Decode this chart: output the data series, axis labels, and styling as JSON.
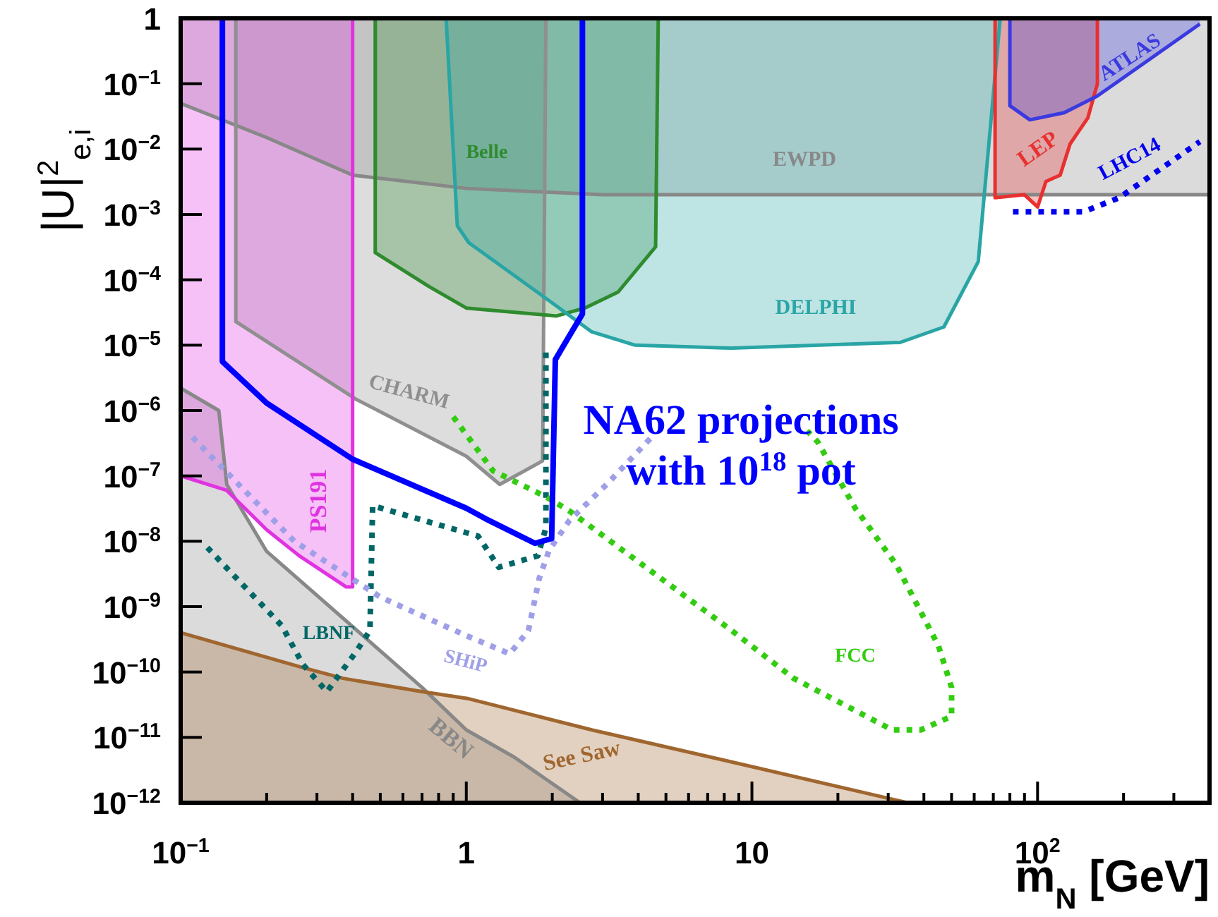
{
  "chart_data": {
    "type": "area",
    "xlabel": "m$_{N}$ [GeV]",
    "ylabel": "|U|$^{2}$$_{e,i}$",
    "log": "xy",
    "grid": false,
    "legend": false,
    "xlim": [
      0.1,
      400
    ],
    "ylim": [
      1e-12,
      1
    ],
    "xticks": [
      {
        "value": 0.1,
        "label": "10$^{−1}$"
      },
      {
        "value": 0.2,
        "label": null
      },
      {
        "value": 0.3,
        "label": null
      },
      {
        "value": 0.4,
        "label": null
      },
      {
        "value": 0.5,
        "label": null
      },
      {
        "value": 0.6,
        "label": null
      },
      {
        "value": 0.7,
        "label": null
      },
      {
        "value": 0.8,
        "label": null
      },
      {
        "value": 0.9,
        "label": null
      },
      1,
      {
        "value": 2,
        "label": null
      },
      {
        "value": 3,
        "label": null
      },
      {
        "value": 4,
        "label": null
      },
      {
        "value": 5,
        "label": null
      },
      {
        "value": 6,
        "label": null
      },
      {
        "value": 7,
        "label": null
      },
      {
        "value": 8,
        "label": null
      },
      {
        "value": 9,
        "label": null
      },
      10,
      {
        "value": 20,
        "label": null
      },
      {
        "value": 30,
        "label": null
      },
      {
        "value": 40,
        "label": null
      },
      {
        "value": 50,
        "label": null
      },
      {
        "value": 60,
        "label": null
      },
      {
        "value": 70,
        "label": null
      },
      {
        "value": 80,
        "label": null
      },
      {
        "value": 90,
        "label": null
      },
      {
        "value": 100,
        "label": "10$^{2}$"
      },
      {
        "value": 200,
        "label": null
      },
      {
        "value": 300,
        "label": null
      }
    ],
    "yticks": [
      {
        "value": 1e-12,
        "label": "10$^{−12}$"
      },
      {
        "value": 1e-11,
        "label": "10$^{−11}$"
      },
      {
        "value": 1e-10,
        "label": "10$^{−10}$"
      },
      {
        "value": 1e-09,
        "label": "10$^{−9}$"
      },
      {
        "value": 1e-08,
        "label": "10$^{−8}$"
      },
      {
        "value": 1e-07,
        "label": "10$^{−7}$"
      },
      {
        "value": 1e-06,
        "label": "10$^{−6}$"
      },
      {
        "value": 1e-05,
        "label": "10$^{−5}$"
      },
      {
        "value": 0.0001,
        "label": "10$^{−4}$"
      },
      {
        "value": 0.001,
        "label": "10$^{−3}$"
      },
      {
        "value": 0.01,
        "label": "10$^{−2}$"
      },
      {
        "value": 0.1,
        "label": "10$^{−1}$"
      },
      1
    ],
    "series": [
      {
        "name": "EWPD",
        "type": "line",
        "line_style": "solid",
        "color": "#888888",
        "x": [
          0.1,
          0.2,
          0.4,
          1,
          3,
          10,
          100,
          400
        ],
        "values": [
          0.05,
          0.015,
          0.004,
          0.0025,
          0.002,
          0.002,
          0.002,
          0.002
        ],
        "lower": [
          0.05,
          0.015,
          0.004,
          0.0025,
          0.002,
          0.002,
          0.002,
          0.002
        ],
        "upper": [
          1,
          1,
          1,
          1,
          1,
          1,
          1,
          1
        ]
      },
      {
        "name": "CHARM",
        "type": "line",
        "line_style": "solid",
        "color": "#8f8f8f",
        "x": [
          0.156,
          0.156,
          0.41,
          1,
          1.31,
          1.85,
          1.9
        ],
        "values": [
          1,
          2.3e-05,
          1.5e-06,
          2e-07,
          7.4e-08,
          1.7e-07,
          1
        ],
        "lower": [
          1,
          2.3e-05,
          1.5e-06,
          2e-07,
          7.4e-08,
          1.7e-07,
          1
        ],
        "upper": [
          1,
          1,
          1,
          1,
          1,
          1,
          1
        ]
      },
      {
        "name": "BBN",
        "color": "#888888",
        "x": [
          0.1,
          0.136,
          0.145,
          0.2,
          0.7,
          1,
          1.47,
          2.5
        ],
        "values": [
          2.2e-06,
          1e-06,
          7.4e-08,
          7e-09,
          5.8e-11,
          1.3e-11,
          5e-12,
          1e-12
        ]
      },
      {
        "name": "See Saw",
        "color": "#a0662f",
        "x": [
          0.1,
          0.262,
          0.37,
          0.7,
          1.02,
          2.75,
          8.5,
          35
        ],
        "values": [
          4e-10,
          1.2e-10,
          8e-11,
          5e-11,
          3.9e-11,
          1.3e-11,
          4.2e-12,
          1e-12
        ]
      },
      {
        "name": "PS191",
        "type": "line",
        "line_style": "solid",
        "color": "#e033e0",
        "x": [
          0.1,
          0.145,
          0.2,
          0.26,
          0.38,
          0.4,
          0.4
        ],
        "values": [
          1e-07,
          6e-08,
          1.5e-08,
          6e-09,
          2e-09,
          2e-09,
          1
        ],
        "lower": [
          1e-07,
          6e-08,
          1.5e-08,
          6e-09,
          2e-09,
          2e-09,
          1
        ],
        "upper": [
          1,
          1,
          1,
          1,
          1,
          1,
          1
        ]
      },
      {
        "name": "Belle",
        "type": "line",
        "line_style": "solid",
        "color": "#2e8b2e",
        "x": [
          0.48,
          0.48,
          0.74,
          1,
          2.07,
          2.6,
          3.4,
          4.6,
          4.7
        ],
        "values": [
          1,
          0.00026,
          7.9e-05,
          3.7e-05,
          2.8e-05,
          3.7e-05,
          6.5e-05,
          0.00032,
          1
        ],
        "lower": [
          1,
          0.00026,
          7.9e-05,
          3.7e-05,
          2.8e-05,
          3.7e-05,
          6.5e-05,
          0.00032,
          1
        ],
        "upper": [
          1,
          1,
          1,
          1,
          1,
          1,
          1,
          1,
          1
        ]
      },
      {
        "name": "DELPHI",
        "type": "line",
        "line_style": "solid",
        "color": "#2aa5a5",
        "x": [
          0.85,
          0.93,
          1.02,
          1.95,
          2.75,
          3.9,
          8.5,
          33,
          47,
          62,
          74
        ],
        "values": [
          1,
          0.00067,
          0.00037,
          4.8e-05,
          1.6e-05,
          1e-05,
          9e-06,
          1.1e-05,
          1.9e-05,
          0.00019,
          1
        ],
        "lower": [
          1,
          0.00067,
          0.00037,
          4.8e-05,
          1.6e-05,
          1e-05,
          9e-06,
          1.1e-05,
          1.9e-05,
          0.00019,
          1
        ],
        "upper": [
          1,
          1,
          1,
          1,
          1,
          1,
          1,
          1,
          1,
          1,
          1
        ]
      },
      {
        "name": "LEP",
        "type": "line",
        "line_style": "solid",
        "color": "#e83030",
        "x": [
          71,
          71,
          90,
          100,
          107,
          120,
          130,
          150,
          162,
          162
        ],
        "values": [
          1,
          0.0018,
          0.002,
          0.0013,
          0.0032,
          0.004,
          0.012,
          0.03,
          0.1,
          1
        ],
        "lower": [
          1,
          0.0018,
          0.002,
          0.0013,
          0.0032,
          0.004,
          0.012,
          0.03,
          0.1,
          1
        ],
        "upper": [
          1,
          1,
          1,
          1,
          1,
          1,
          1,
          1,
          1,
          1
        ]
      },
      {
        "name": "ATLAS",
        "type": "line",
        "line_style": "solid",
        "color": "#3a3ae0",
        "x": [
          80,
          80,
          94,
          124,
          162,
          370
        ],
        "values": [
          1,
          0.046,
          0.028,
          0.036,
          0.065,
          0.82
        ],
        "lower": [
          1,
          0.046,
          0.028,
          0.036,
          0.065,
          0.82
        ],
        "upper": [
          1,
          1,
          1,
          1,
          1,
          1
        ]
      },
      {
        "name": "LBNF",
        "type": "line",
        "line_style": "dotted",
        "color": "#006666",
        "x": [
          0.124,
          0.226,
          0.268,
          0.325,
          0.41,
          0.46,
          0.47,
          1.1,
          1.3,
          1.78,
          1.9,
          1.9
        ],
        "values": [
          8e-09,
          5.1e-10,
          1.3e-10,
          5e-11,
          2e-10,
          4.3e-10,
          3.5e-08,
          1.2e-08,
          4e-09,
          6e-09,
          1.6e-08,
          9e-06
        ]
      },
      {
        "name": "SHiP",
        "type": "line",
        "line_style": "dotted",
        "color": "#9f9fe8",
        "x": [
          0.11,
          0.25,
          0.5,
          1,
          1.42,
          1.65,
          1.8,
          1.95,
          2.3,
          3.1,
          4.45
        ],
        "values": [
          3.9e-07,
          1e-08,
          1.4e-09,
          3.6e-10,
          1.9e-10,
          4.3e-10,
          2.7e-09,
          7.3e-09,
          2.1e-08,
          7.4e-08,
          3.9e-07
        ]
      },
      {
        "name": "FCC",
        "type": "line",
        "line_style": "dotted",
        "color": "#33cc11",
        "x": [
          0.9,
          1.24,
          1.9,
          2.3,
          3.2,
          8.5,
          14,
          31,
          39,
          50,
          50,
          45,
          32,
          23,
          17,
          15.6
        ],
        "values": [
          8e-07,
          1.2e-07,
          4.8e-08,
          2.9e-08,
          1e-08,
          4.3e-10,
          8e-11,
          1.3e-11,
          1.3e-11,
          2.1e-11,
          5.8e-11,
          2.5e-10,
          4.4e-09,
          3.2e-08,
          3.3e-07,
          4.9e-07
        ]
      },
      {
        "name": "LHC14",
        "type": "line",
        "line_style": "dotted",
        "color": "#0000ee",
        "x": [
          82,
          145,
          193,
          370
        ],
        "values": [
          0.0011,
          0.0011,
          0.0018,
          0.013
        ]
      },
      {
        "name": "NA62 projections\nwith 10$^{18}$ pot",
        "type": "line",
        "line_style": "solid",
        "color": "#0000ff",
        "x": [
          0.14,
          0.14,
          0.2,
          0.4,
          1,
          1.17,
          1.74,
          1.99,
          2.05,
          2.25,
          2.55,
          2.55
        ],
        "values": [
          1,
          5.6e-06,
          1.3e-06,
          1.8e-07,
          3.2e-08,
          2.2e-08,
          9.3e-09,
          1.1e-08,
          6e-06,
          1.2e-05,
          3e-05,
          1
        ]
      }
    ]
  }
}
